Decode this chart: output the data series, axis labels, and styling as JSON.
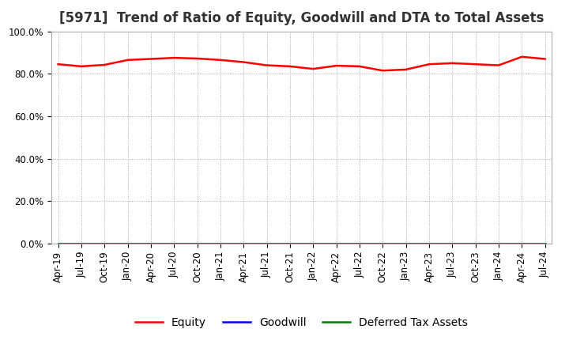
{
  "title": "[5971]  Trend of Ratio of Equity, Goodwill and DTA to Total Assets",
  "x_labels": [
    "Apr-19",
    "Jul-19",
    "Oct-19",
    "Jan-20",
    "Apr-20",
    "Jul-20",
    "Oct-20",
    "Jan-21",
    "Apr-21",
    "Jul-21",
    "Oct-21",
    "Jan-22",
    "Apr-22",
    "Jul-22",
    "Oct-22",
    "Jan-23",
    "Apr-23",
    "Jul-23",
    "Oct-23",
    "Jan-24",
    "Apr-24",
    "Jul-24"
  ],
  "equity": [
    84.5,
    83.5,
    84.2,
    86.5,
    87.0,
    87.5,
    87.2,
    86.5,
    85.5,
    84.0,
    83.5,
    82.3,
    83.8,
    83.5,
    81.5,
    82.0,
    84.5,
    85.0,
    84.5,
    84.0,
    88.0,
    87.0
  ],
  "goodwill": [
    0,
    0,
    0,
    0,
    0,
    0,
    0,
    0,
    0,
    0,
    0,
    0,
    0,
    0,
    0,
    0,
    0,
    0,
    0,
    0,
    0,
    0
  ],
  "dta": [
    0,
    0,
    0,
    0,
    0,
    0,
    0,
    0,
    0,
    0,
    0,
    0,
    0,
    0,
    0,
    0,
    0,
    0,
    0,
    0,
    0,
    0
  ],
  "equity_color": "#FF0000",
  "goodwill_color": "#0000FF",
  "dta_color": "#008000",
  "background_color": "#FFFFFF",
  "plot_bg_color": "#FFFFFF",
  "grid_color": "#999999",
  "ylim": [
    0,
    100
  ],
  "yticks": [
    0,
    20,
    40,
    60,
    80,
    100
  ],
  "ytick_labels": [
    "0.0%",
    "20.0%",
    "40.0%",
    "60.0%",
    "80.0%",
    "100.0%"
  ],
  "title_fontsize": 12,
  "tick_fontsize": 8.5,
  "legend_fontsize": 10
}
